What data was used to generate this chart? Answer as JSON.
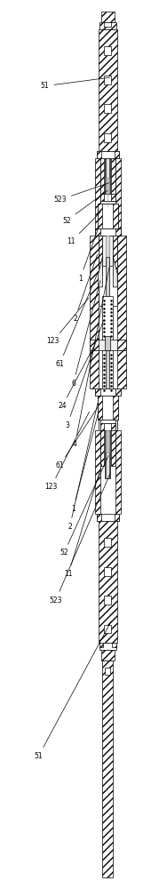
{
  "fig_width": 1.7,
  "fig_height": 10.0,
  "dpi": 100,
  "bg_color": "#ffffff",
  "line_color": "#000000"
}
